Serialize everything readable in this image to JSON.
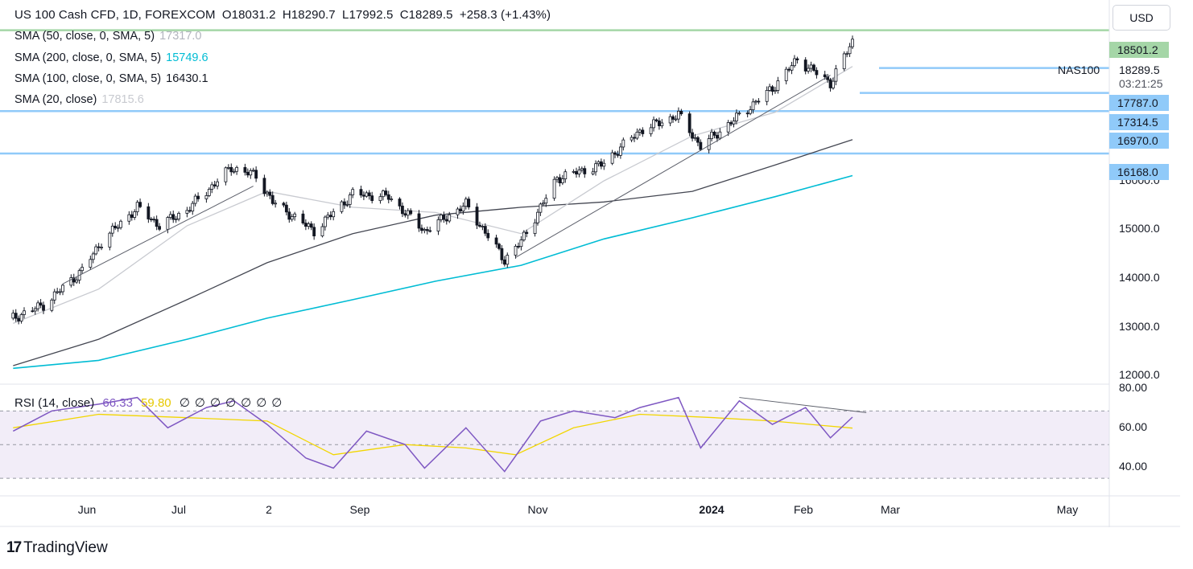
{
  "header": {
    "symbol_line": "US 100 Cash CFD, 1D, FOREXCOM",
    "open": "O18031.2",
    "high": "H18290.7",
    "low": "L17992.5",
    "close": "C18289.5",
    "change": "+258.3 (+1.43%)"
  },
  "indicators": [
    {
      "label": "SMA (50, close, 0, SMA, 5)",
      "value": "17317.0",
      "color": "#b2b5be"
    },
    {
      "label": "SMA (200, close, 0, SMA, 5)",
      "value": "15749.6",
      "color": "#00bcd4"
    },
    {
      "label": "SMA (100, close, 0, SMA, 5)",
      "value": "16430.1",
      "color": "#131722"
    },
    {
      "label": "SMA (20, close)",
      "value": "17815.6",
      "color": "#d1d4dc"
    }
  ],
  "currency_button": "USD",
  "symbol_tag": "NAS100",
  "last_price": "18289.5",
  "countdown": "03:21:25",
  "price_tags": [
    {
      "value": "18501.2",
      "color": "#a5d6a7"
    },
    {
      "value": "17787.0",
      "color": "#90caf9"
    },
    {
      "value": "17314.5",
      "color": "#90caf9"
    },
    {
      "value": "16970.0",
      "color": "#90caf9"
    },
    {
      "value": "16168.0",
      "color": "#90caf9"
    }
  ],
  "y_ticks": [
    "16000.0",
    "15000.0",
    "14000.0",
    "13000.0",
    "12000.0"
  ],
  "rsi": {
    "label": "RSI (14, close)",
    "value": "66.33",
    "ma_value": "59.80",
    "extra": [
      "∅",
      "∅",
      "∅",
      "∅",
      "∅",
      "∅",
      "∅"
    ],
    "y_ticks": [
      "80.00",
      "60.00",
      "40.00"
    ]
  },
  "x_ticks": [
    "Jun",
    "Jul",
    "2",
    "Sep",
    "Nov",
    "2024",
    "Feb",
    "Mar",
    "May"
  ],
  "brand": "TradingView",
  "chart_data": {
    "type": "candlestick",
    "title": "US 100 Cash CFD, 1D, FOREXCOM",
    "ylim": [
      11800,
      18800
    ],
    "horizontal_levels": [
      18501.2,
      17787.0,
      17314.5,
      16970.0,
      16168.0
    ],
    "ohlc_last": {
      "open": 18031.2,
      "high": 18290.7,
      "low": 17992.5,
      "close": 18289.5
    },
    "close_anchors": [
      {
        "date": "2023-05-01",
        "close": 13050
      },
      {
        "date": "2023-05-12",
        "close": 13300
      },
      {
        "date": "2023-05-26",
        "close": 13950
      },
      {
        "date": "2023-06-02",
        "close": 14500
      },
      {
        "date": "2023-06-15",
        "close": 15150
      },
      {
        "date": "2023-06-23",
        "close": 14800
      },
      {
        "date": "2023-07-03",
        "close": 15100
      },
      {
        "date": "2023-07-19",
        "close": 15900
      },
      {
        "date": "2023-07-28",
        "close": 15750
      },
      {
        "date": "2023-08-03",
        "close": 15250
      },
      {
        "date": "2023-08-18",
        "close": 14700
      },
      {
        "date": "2023-09-01",
        "close": 15400
      },
      {
        "date": "2023-09-14",
        "close": 15350
      },
      {
        "date": "2023-09-27",
        "close": 14700
      },
      {
        "date": "2023-10-12",
        "close": 15200
      },
      {
        "date": "2023-10-26",
        "close": 14150
      },
      {
        "date": "2023-11-01",
        "close": 14500
      },
      {
        "date": "2023-11-14",
        "close": 15700
      },
      {
        "date": "2023-11-30",
        "close": 15950
      },
      {
        "date": "2023-12-14",
        "close": 16600
      },
      {
        "date": "2023-12-28",
        "close": 16900
      },
      {
        "date": "2024-01-05",
        "close": 16300
      },
      {
        "date": "2024-01-17",
        "close": 16800
      },
      {
        "date": "2024-01-31",
        "close": 17400
      },
      {
        "date": "2024-02-09",
        "close": 17950
      },
      {
        "date": "2024-02-21",
        "close": 17500
      },
      {
        "date": "2024-02-29",
        "close": 18289.5
      }
    ],
    "sma20": [
      {
        "date": "2023-05-01",
        "close": 12950
      },
      {
        "date": "2023-06-01",
        "close": 13600
      },
      {
        "date": "2023-07-03",
        "close": 14800
      },
      {
        "date": "2023-08-01",
        "close": 15450
      },
      {
        "date": "2023-09-01",
        "close": 15150
      },
      {
        "date": "2023-10-01",
        "close": 15050
      },
      {
        "date": "2023-11-01",
        "close": 14650
      },
      {
        "date": "2023-12-01",
        "close": 15650
      },
      {
        "date": "2024-01-02",
        "close": 16500
      },
      {
        "date": "2024-02-01",
        "close": 16950
      },
      {
        "date": "2024-02-29",
        "close": 17815.6
      }
    ],
    "sma100": [
      {
        "date": "2023-05-01",
        "close": 12150
      },
      {
        "date": "2023-06-01",
        "close": 12650
      },
      {
        "date": "2023-07-03",
        "close": 13400
      },
      {
        "date": "2023-08-01",
        "close": 14100
      },
      {
        "date": "2023-09-01",
        "close": 14650
      },
      {
        "date": "2023-10-01",
        "close": 15000
      },
      {
        "date": "2023-11-01",
        "close": 15150
      },
      {
        "date": "2023-12-01",
        "close": 15250
      },
      {
        "date": "2024-01-02",
        "close": 15450
      },
      {
        "date": "2024-02-01",
        "close": 15950
      },
      {
        "date": "2024-02-29",
        "close": 16430.1
      }
    ],
    "sma200": [
      {
        "date": "2023-05-01",
        "close": 12100
      },
      {
        "date": "2023-06-01",
        "close": 12250
      },
      {
        "date": "2023-07-03",
        "close": 12650
      },
      {
        "date": "2023-08-01",
        "close": 13050
      },
      {
        "date": "2023-09-01",
        "close": 13400
      },
      {
        "date": "2023-10-01",
        "close": 13750
      },
      {
        "date": "2023-11-01",
        "close": 14050
      },
      {
        "date": "2023-12-01",
        "close": 14550
      },
      {
        "date": "2024-01-02",
        "close": 14950
      },
      {
        "date": "2024-02-01",
        "close": 15350
      },
      {
        "date": "2024-02-29",
        "close": 15749.6
      }
    ],
    "rsi_series": [
      {
        "date": "2023-05-01",
        "value": 58
      },
      {
        "date": "2023-05-15",
        "value": 70
      },
      {
        "date": "2023-06-01",
        "value": 74
      },
      {
        "date": "2023-06-15",
        "value": 78
      },
      {
        "date": "2023-06-26",
        "value": 60
      },
      {
        "date": "2023-07-10",
        "value": 72
      },
      {
        "date": "2023-07-20",
        "value": 76
      },
      {
        "date": "2023-08-01",
        "value": 62
      },
      {
        "date": "2023-08-15",
        "value": 42
      },
      {
        "date": "2023-08-25",
        "value": 36
      },
      {
        "date": "2023-09-06",
        "value": 58
      },
      {
        "date": "2023-09-20",
        "value": 50
      },
      {
        "date": "2023-09-27",
        "value": 36
      },
      {
        "date": "2023-10-12",
        "value": 60
      },
      {
        "date": "2023-10-26",
        "value": 34
      },
      {
        "date": "2023-11-08",
        "value": 64
      },
      {
        "date": "2023-11-20",
        "value": 70
      },
      {
        "date": "2023-12-05",
        "value": 66
      },
      {
        "date": "2023-12-14",
        "value": 72
      },
      {
        "date": "2023-12-28",
        "value": 78
      },
      {
        "date": "2024-01-05",
        "value": 48
      },
      {
        "date": "2024-01-19",
        "value": 76
      },
      {
        "date": "2024-01-31",
        "value": 62
      },
      {
        "date": "2024-02-12",
        "value": 72
      },
      {
        "date": "2024-02-21",
        "value": 54
      },
      {
        "date": "2024-02-29",
        "value": 66.33
      }
    ],
    "rsi_ma": [
      {
        "date": "2023-05-01",
        "value": 60
      },
      {
        "date": "2023-06-01",
        "value": 68
      },
      {
        "date": "2023-07-03",
        "value": 66
      },
      {
        "date": "2023-08-01",
        "value": 64
      },
      {
        "date": "2023-08-25",
        "value": 44
      },
      {
        "date": "2023-09-20",
        "value": 50
      },
      {
        "date": "2023-10-12",
        "value": 48
      },
      {
        "date": "2023-10-30",
        "value": 44
      },
      {
        "date": "2023-11-20",
        "value": 60
      },
      {
        "date": "2023-12-14",
        "value": 68
      },
      {
        "date": "2024-01-10",
        "value": 66
      },
      {
        "date": "2024-01-31",
        "value": 64
      },
      {
        "date": "2024-02-29",
        "value": 59.8
      }
    ],
    "rsi_ylim": [
      20,
      84
    ],
    "rsi_bands": [
      70,
      50,
      30
    ],
    "x_range": [
      "2023-04-28",
      "2024-06-01"
    ]
  }
}
